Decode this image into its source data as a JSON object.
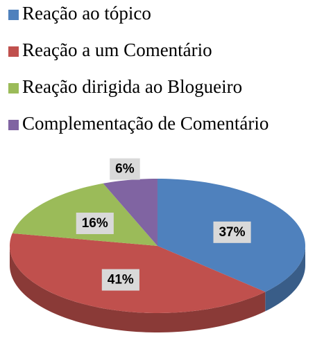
{
  "chart_data": {
    "type": "pie",
    "categories": [
      "Reação ao tópico",
      "Reação a um Comentário",
      "Reação dirigida ao Blogueiro",
      "Complementação de Comentário"
    ],
    "values": [
      37,
      41,
      16,
      6
    ],
    "value_labels": [
      "37%",
      "41%",
      "16%",
      "6%"
    ],
    "colors": [
      "#4f81bd",
      "#c0504d",
      "#9bbb59",
      "#8064a2"
    ],
    "legend": "top-left"
  }
}
